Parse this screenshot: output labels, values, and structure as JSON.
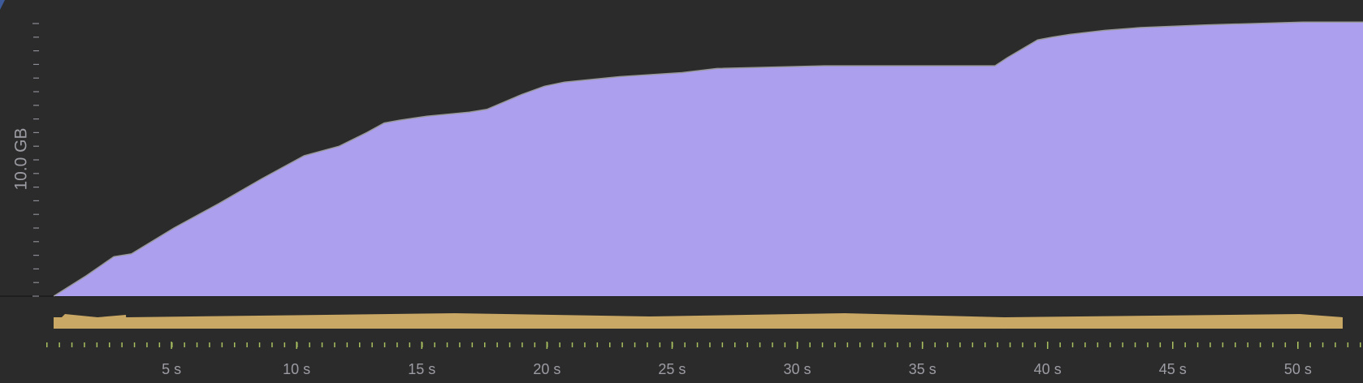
{
  "chart_data": {
    "type": "area",
    "ylabel": "10.0 GB",
    "x": [
      0.3,
      1.6,
      2.7,
      3.4,
      5.1,
      6.9,
      8.6,
      10.3,
      11.1,
      11.7,
      12.8,
      13.5,
      14.1,
      15.2,
      16.9,
      17.6,
      19.0,
      19.9,
      20.7,
      21.8,
      22.9,
      25.4,
      26.8,
      31.1,
      37.9,
      38.4,
      39.6,
      40.2,
      40.9,
      42.3,
      43.7,
      46.3,
      50.2,
      52.6
    ],
    "values": [
      0,
      1.5,
      2.9,
      3.1,
      5.0,
      6.8,
      8.6,
      10.3,
      10.7,
      11.0,
      12.0,
      12.7,
      12.9,
      13.2,
      13.5,
      13.7,
      14.8,
      15.4,
      15.7,
      15.9,
      16.1,
      16.4,
      16.7,
      16.9,
      16.9,
      17.5,
      18.8,
      19.0,
      19.2,
      19.5,
      19.7,
      19.9,
      20.1,
      20.1
    ],
    "color": "#ab9fee",
    "line_color": "#9a9a9a",
    "xlim": [
      0,
      52.6
    ],
    "ylim": [
      0,
      20
    ],
    "yticks": [
      0,
      1,
      2,
      3,
      4,
      5,
      6,
      7,
      8,
      9,
      10,
      11,
      12,
      13,
      14,
      15,
      16,
      17,
      18,
      19,
      20
    ],
    "xticks": [
      {
        "value": 5,
        "label": "5 s"
      },
      {
        "value": 10,
        "label": "10 s"
      },
      {
        "value": 15,
        "label": "15 s"
      },
      {
        "value": 20,
        "label": "20 s"
      },
      {
        "value": 25,
        "label": "25 s"
      },
      {
        "value": 30,
        "label": "30 s"
      },
      {
        "value": 35,
        "label": "35 s"
      },
      {
        "value": 40,
        "label": "40 s"
      },
      {
        "value": 45,
        "label": "45 s"
      },
      {
        "value": 50,
        "label": "50 s"
      }
    ]
  }
}
